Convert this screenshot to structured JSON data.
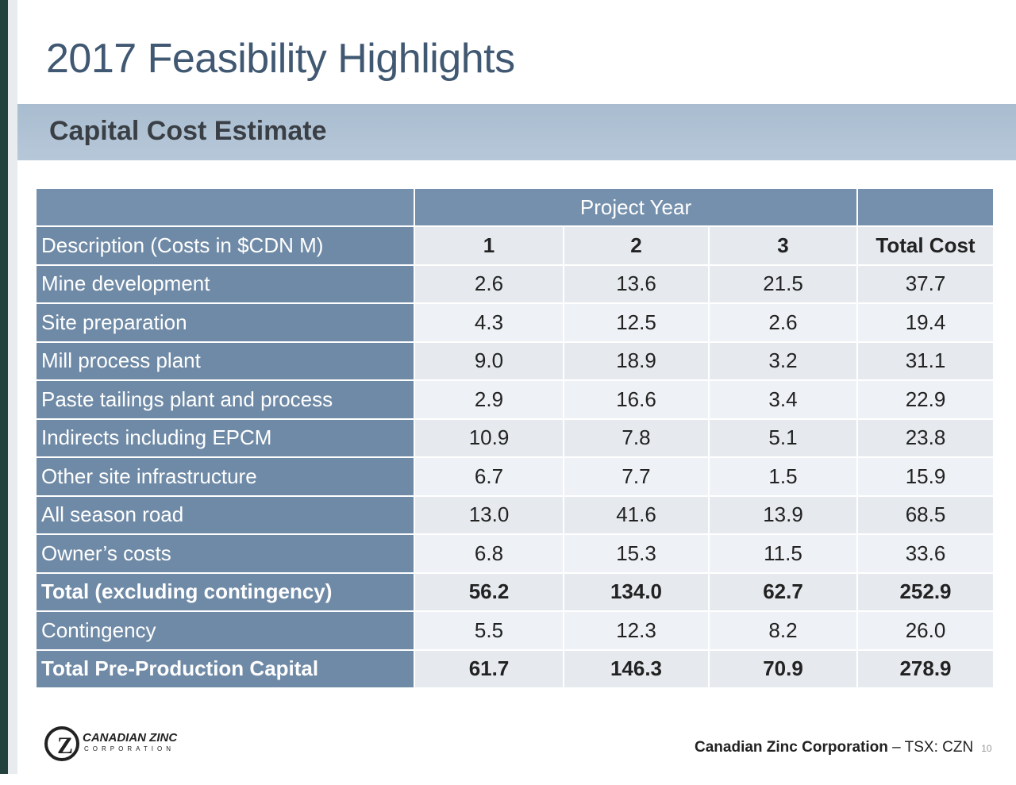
{
  "slide": {
    "title": "2017 Feasibility Highlights",
    "subtitle": "Capital Cost Estimate"
  },
  "table": {
    "group_header": "Project Year",
    "columns": [
      "Description (Costs in $CDN M)",
      "1",
      "2",
      "3",
      "Total Cost"
    ],
    "rows": [
      {
        "label": "Mine development",
        "y1": "2.6",
        "y2": "13.6",
        "y3": "21.5",
        "total": "37.7",
        "bold": false
      },
      {
        "label": "Site preparation",
        "y1": "4.3",
        "y2": "12.5",
        "y3": "2.6",
        "total": "19.4",
        "bold": false
      },
      {
        "label": "Mill process plant",
        "y1": "9.0",
        "y2": "18.9",
        "y3": "3.2",
        "total": "31.1",
        "bold": false
      },
      {
        "label": "Paste tailings plant and process",
        "y1": "2.9",
        "y2": "16.6",
        "y3": "3.4",
        "total": "22.9",
        "bold": false
      },
      {
        "label": "Indirects including EPCM",
        "y1": "10.9",
        "y2": "7.8",
        "y3": "5.1",
        "total": "23.8",
        "bold": false
      },
      {
        "label": "Other site infrastructure",
        "y1": "6.7",
        "y2": "7.7",
        "y3": "1.5",
        "total": "15.9",
        "bold": false
      },
      {
        "label": "All season road",
        "y1": "13.0",
        "y2": "41.6",
        "y3": "13.9",
        "total": "68.5",
        "bold": false
      },
      {
        "label": "Owner’s costs",
        "y1": "6.8",
        "y2": "15.3",
        "y3": "11.5",
        "total": "33.6",
        "bold": false
      },
      {
        "label": "Total (excluding contingency)",
        "y1": "56.2",
        "y2": "134.0",
        "y3": "62.7",
        "total": "252.9",
        "bold": true
      },
      {
        "label": "Contingency",
        "y1": "5.5",
        "y2": "12.3",
        "y3": "8.2",
        "total": "26.0",
        "bold": false
      },
      {
        "label": "Total Pre-Production Capital",
        "y1": "61.7",
        "y2": "146.3",
        "y3": "70.9",
        "total": "278.9",
        "bold": true
      }
    ]
  },
  "logo": {
    "name": "CANADIAN ZINC",
    "sub": "CORPORATION"
  },
  "footer": {
    "company": "Canadian Zinc Corporation",
    "ticker": " – TSX: CZN",
    "page": "10"
  },
  "colors": {
    "accent": "#6f8aa6",
    "title": "#405872",
    "band": "#b0c3d6",
    "left_bar": "#22423e"
  }
}
